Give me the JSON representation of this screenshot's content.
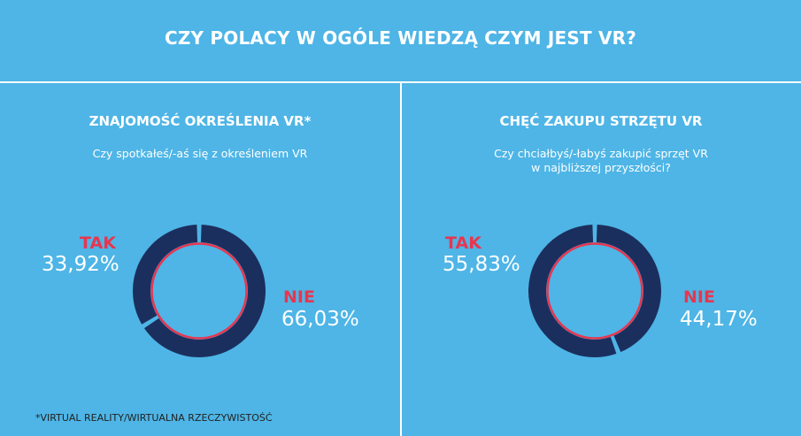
{
  "title": "CZY POLACY W OGÓLE WIEDZĄ CZYM JEST VR?",
  "footnote": "*VIRTUAL REALITY/WIRTUALNA RZECZYWISTOŚĆ",
  "colors": {
    "background": "#4eb5e6",
    "ring": "#1b2f5e",
    "inner_ring": "#e8364f",
    "label": "#e8364f"
  },
  "panels": [
    {
      "title": "ZNAJOMOŚĆ OKREŚLENIA VR*",
      "subtitle_lines": [
        "Czy spotkałeś/-aś się z określeniem VR"
      ]
    },
    {
      "title": "CHĘĆ ZAKUPU STRZĘTU VR",
      "subtitle_lines": [
        "Czy chciałbyś/-łabyś zakupić sprzęt VR",
        "w najbliższej przyszłości?"
      ]
    }
  ],
  "chart_data": [
    {
      "type": "pie",
      "categories": [
        "TAK",
        "NIE"
      ],
      "values": [
        33.92,
        66.03
      ],
      "value_labels": [
        "33,92%",
        "66,03%"
      ]
    },
    {
      "type": "pie",
      "categories": [
        "TAK",
        "NIE"
      ],
      "values": [
        55.83,
        44.17
      ],
      "value_labels": [
        "55,83%",
        "44,17%"
      ]
    }
  ]
}
